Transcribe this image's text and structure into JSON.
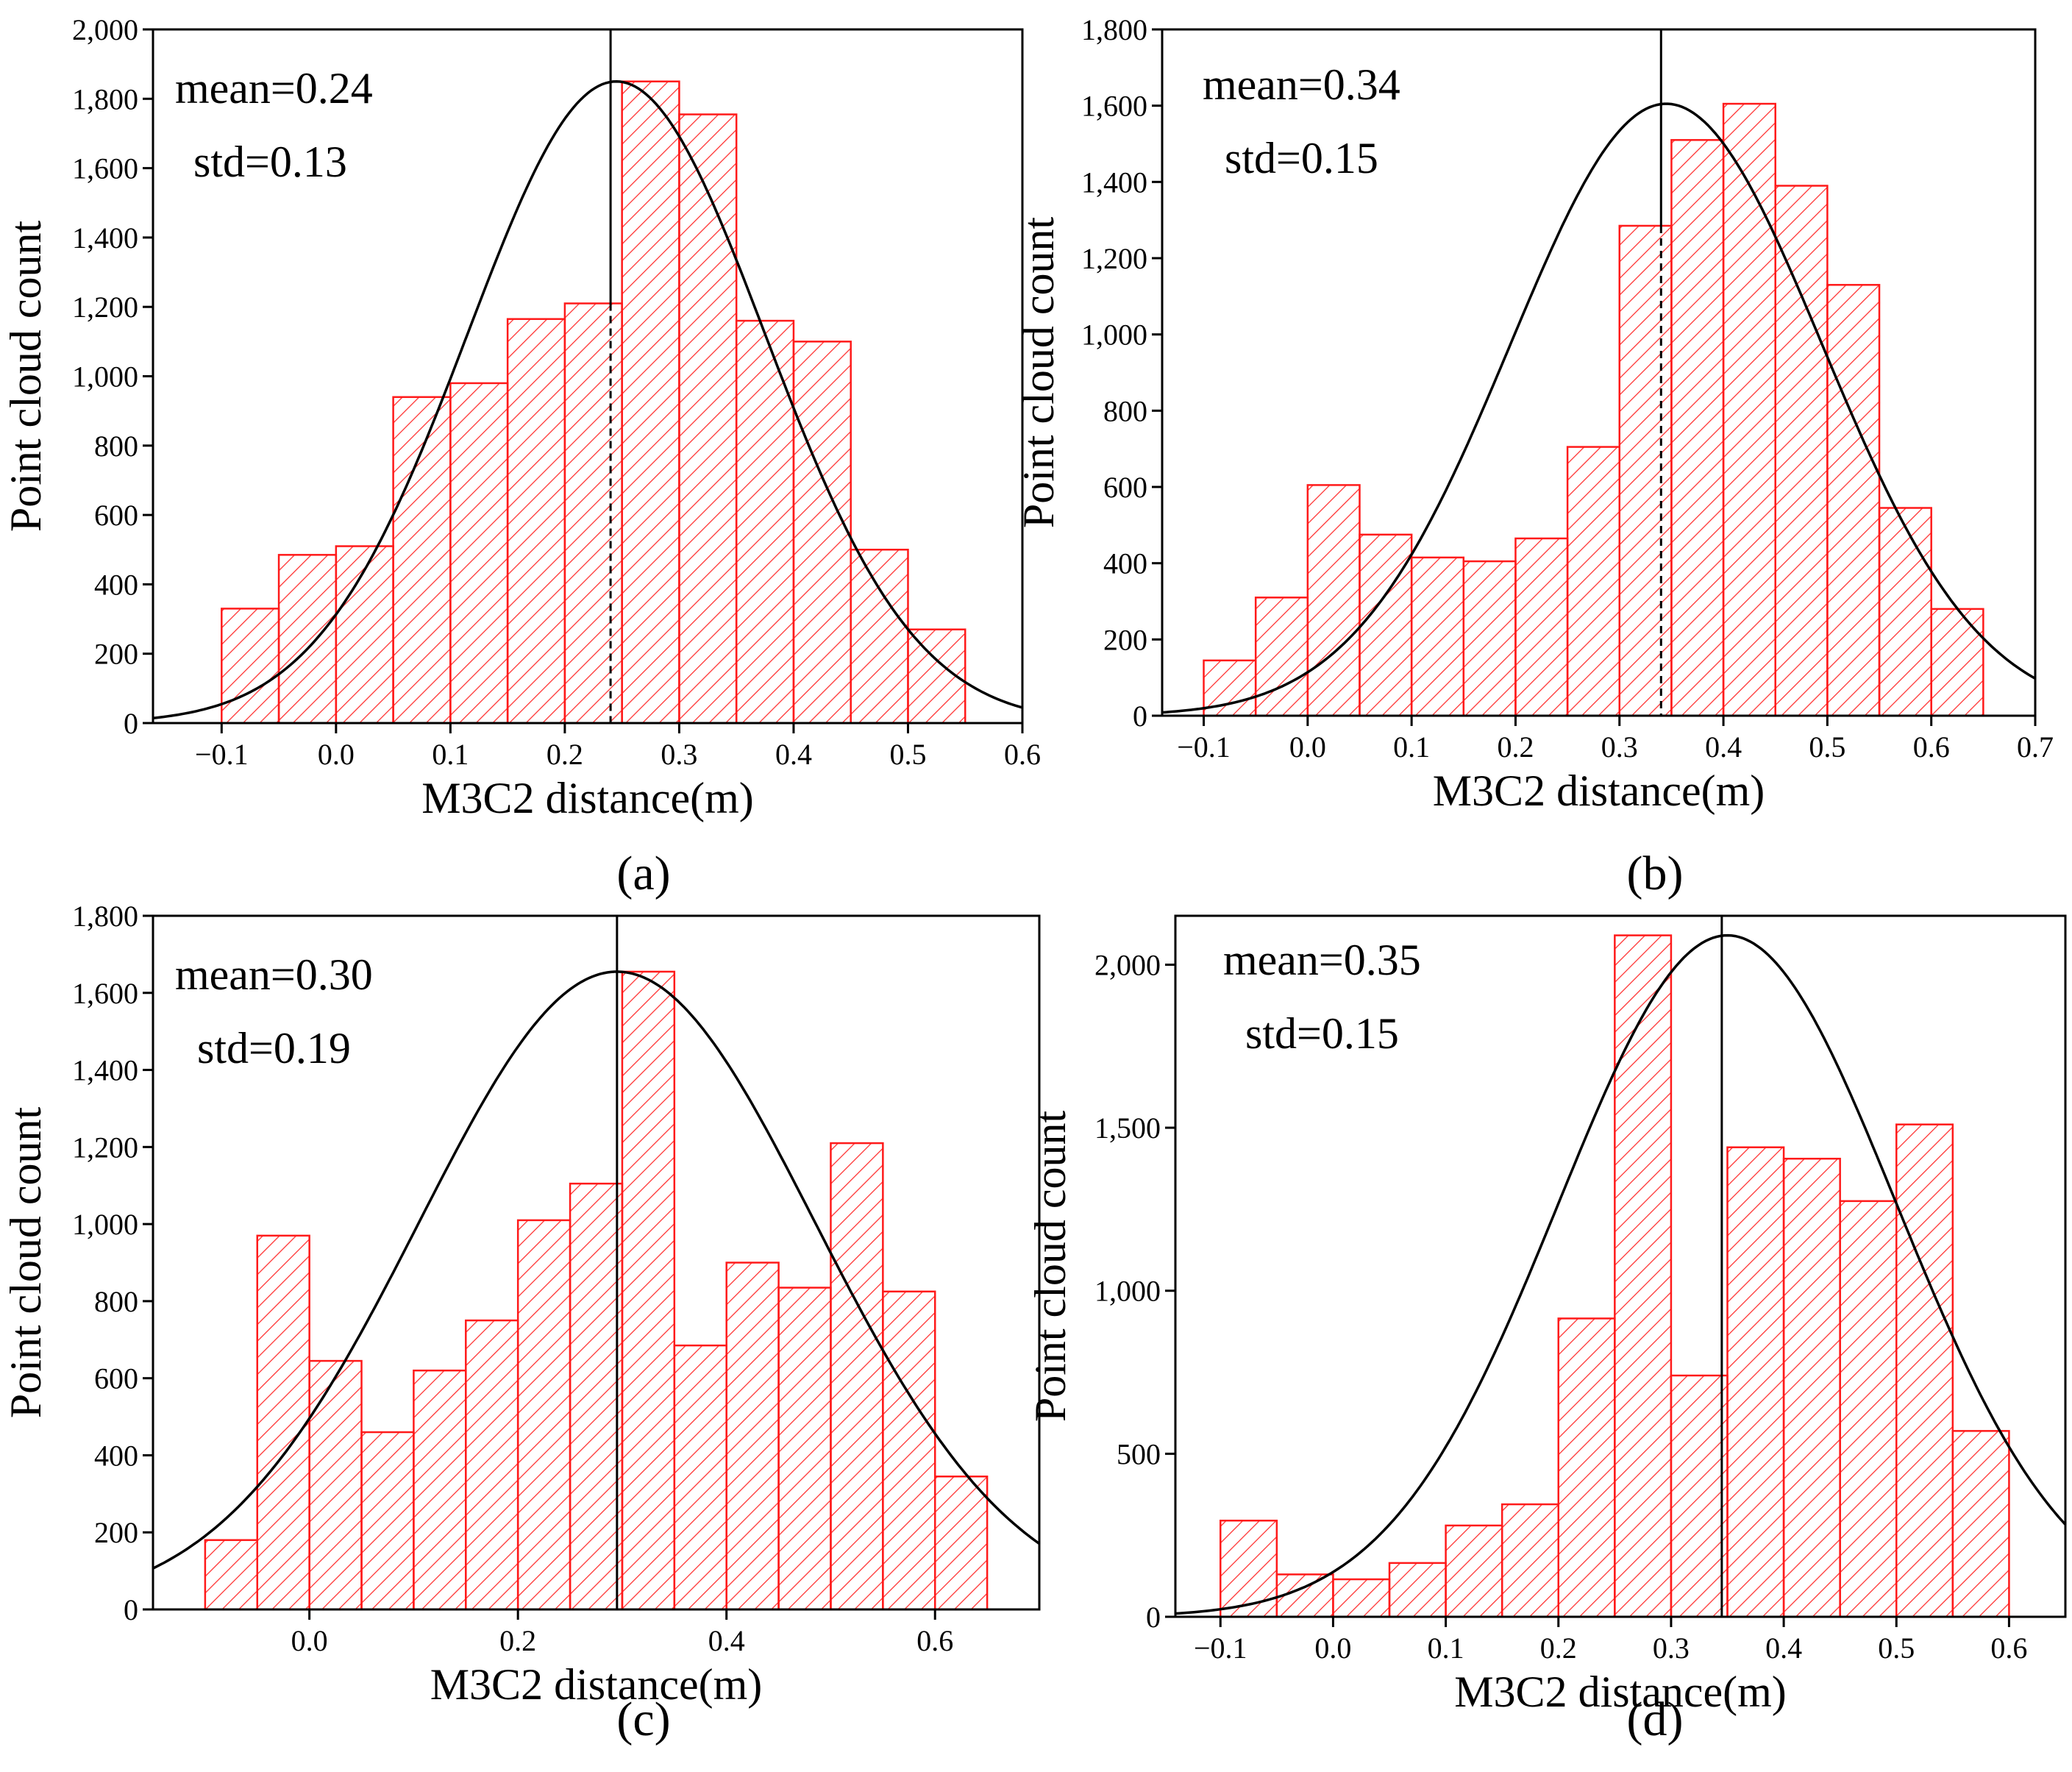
{
  "colors": {
    "bar_stroke": "#ff1a1a",
    "hatch": "#ff3333",
    "curve": "#000000",
    "axis": "#000000"
  },
  "chart_data": [
    {
      "type": "bar",
      "panel_label": "(a)",
      "xlabel": "M3C2 distance(m)",
      "ylabel": "Point cloud count",
      "xlim": [
        -0.16,
        0.6
      ],
      "ylim": [
        0,
        2000
      ],
      "xticks": [
        -0.1,
        0.0,
        0.1,
        0.2,
        0.3,
        0.4,
        0.5,
        0.6
      ],
      "xtick_labels": [
        "−0.1",
        "0.0",
        "0.1",
        "0.2",
        "0.3",
        "0.4",
        "0.5",
        "0.6"
      ],
      "yticks": [
        0,
        200,
        400,
        600,
        800,
        1000,
        1200,
        1400,
        1600,
        1800,
        2000
      ],
      "ytick_labels": [
        "0",
        "200",
        "400",
        "600",
        "800",
        "1,000",
        "1,200",
        "1,400",
        "1,600",
        "1,800",
        "2,000"
      ],
      "bin_start": -0.1,
      "bin_width": 0.05,
      "values": [
        330,
        485,
        510,
        940,
        980,
        1165,
        1210,
        1850,
        1755,
        1160,
        1100,
        500,
        270
      ],
      "mean_line": 0.24,
      "mean_dashed_top": 1210,
      "fit": {
        "mean": 0.245,
        "std": 0.13,
        "peak": 1850
      },
      "annotations": [
        "mean=0.24",
        "std=0.13"
      ]
    },
    {
      "type": "bar",
      "panel_label": "(b)",
      "xlabel": "M3C2 distance(m)",
      "ylabel": "Point cloud count",
      "xlim": [
        -0.14,
        0.7
      ],
      "ylim": [
        0,
        1800
      ],
      "xticks": [
        -0.1,
        0.0,
        0.1,
        0.2,
        0.3,
        0.4,
        0.5,
        0.6,
        0.7
      ],
      "xtick_labels": [
        "−0.1",
        "0.0",
        "0.1",
        "0.2",
        "0.3",
        "0.4",
        "0.5",
        "0.6",
        "0.7"
      ],
      "yticks": [
        0,
        200,
        400,
        600,
        800,
        1000,
        1200,
        1400,
        1600,
        1800
      ],
      "ytick_labels": [
        "0",
        "200",
        "400",
        "600",
        "800",
        "1,000",
        "1,200",
        "1,400",
        "1,600",
        "1,800"
      ],
      "bin_start": -0.1,
      "bin_width": 0.05,
      "values": [
        145,
        310,
        605,
        475,
        415,
        405,
        465,
        705,
        1285,
        1510,
        1605,
        1390,
        1130,
        545,
        280
      ],
      "mean_line": 0.34,
      "mean_dashed_top": 1285,
      "fit": {
        "mean": 0.345,
        "std": 0.15,
        "peak": 1605
      },
      "annotations": [
        "mean=0.34",
        "std=0.15"
      ]
    },
    {
      "type": "bar",
      "panel_label": "(c)",
      "xlabel": "M3C2 distance(m)",
      "ylabel": "Point cloud count",
      "xlim": [
        -0.15,
        0.7
      ],
      "ylim": [
        0,
        1800
      ],
      "xticks": [
        0.0,
        0.2,
        0.4,
        0.6
      ],
      "xtick_labels": [
        "0.0",
        "0.2",
        "0.4",
        "0.6"
      ],
      "yticks": [
        0,
        200,
        400,
        600,
        800,
        1000,
        1200,
        1400,
        1600,
        1800
      ],
      "ytick_labels": [
        "0",
        "200",
        "400",
        "600",
        "800",
        "1,000",
        "1,200",
        "1,400",
        "1,600",
        "1,800"
      ],
      "bin_start": -0.1,
      "bin_width": 0.05,
      "values": [
        180,
        970,
        645,
        460,
        620,
        750,
        1010,
        1105,
        1655,
        685,
        900,
        835,
        1210,
        825,
        345
      ],
      "mean_line": 0.295,
      "mean_dashed_top": null,
      "fit": {
        "mean": 0.295,
        "std": 0.19,
        "peak": 1655
      },
      "annotations": [
        "mean=0.30",
        "std=0.19"
      ]
    },
    {
      "type": "bar",
      "panel_label": "(d)",
      "xlabel": "M3C2 distance(m)",
      "ylabel": "Point cloud count",
      "xlim": [
        -0.14,
        0.65
      ],
      "ylim": [
        0,
        2150
      ],
      "xticks": [
        -0.1,
        0.0,
        0.1,
        0.2,
        0.3,
        0.4,
        0.5,
        0.6
      ],
      "xtick_labels": [
        "−0.1",
        "0.0",
        "0.1",
        "0.2",
        "0.3",
        "0.4",
        "0.5",
        "0.6"
      ],
      "yticks": [
        0,
        500,
        1000,
        1500,
        2000
      ],
      "ytick_labels": [
        "0",
        "500",
        "1,000",
        "1,500",
        "2,000"
      ],
      "bin_start": -0.1,
      "bin_width": 0.05,
      "values": [
        295,
        130,
        115,
        165,
        280,
        345,
        915,
        2090,
        740,
        1440,
        1405,
        1275,
        1510,
        570
      ],
      "mean_line": 0.345,
      "mean_dashed_top": null,
      "fit": {
        "mean": 0.35,
        "std": 0.15,
        "peak": 2090
      },
      "annotations": [
        "mean=0.35",
        "std=0.15"
      ]
    }
  ]
}
